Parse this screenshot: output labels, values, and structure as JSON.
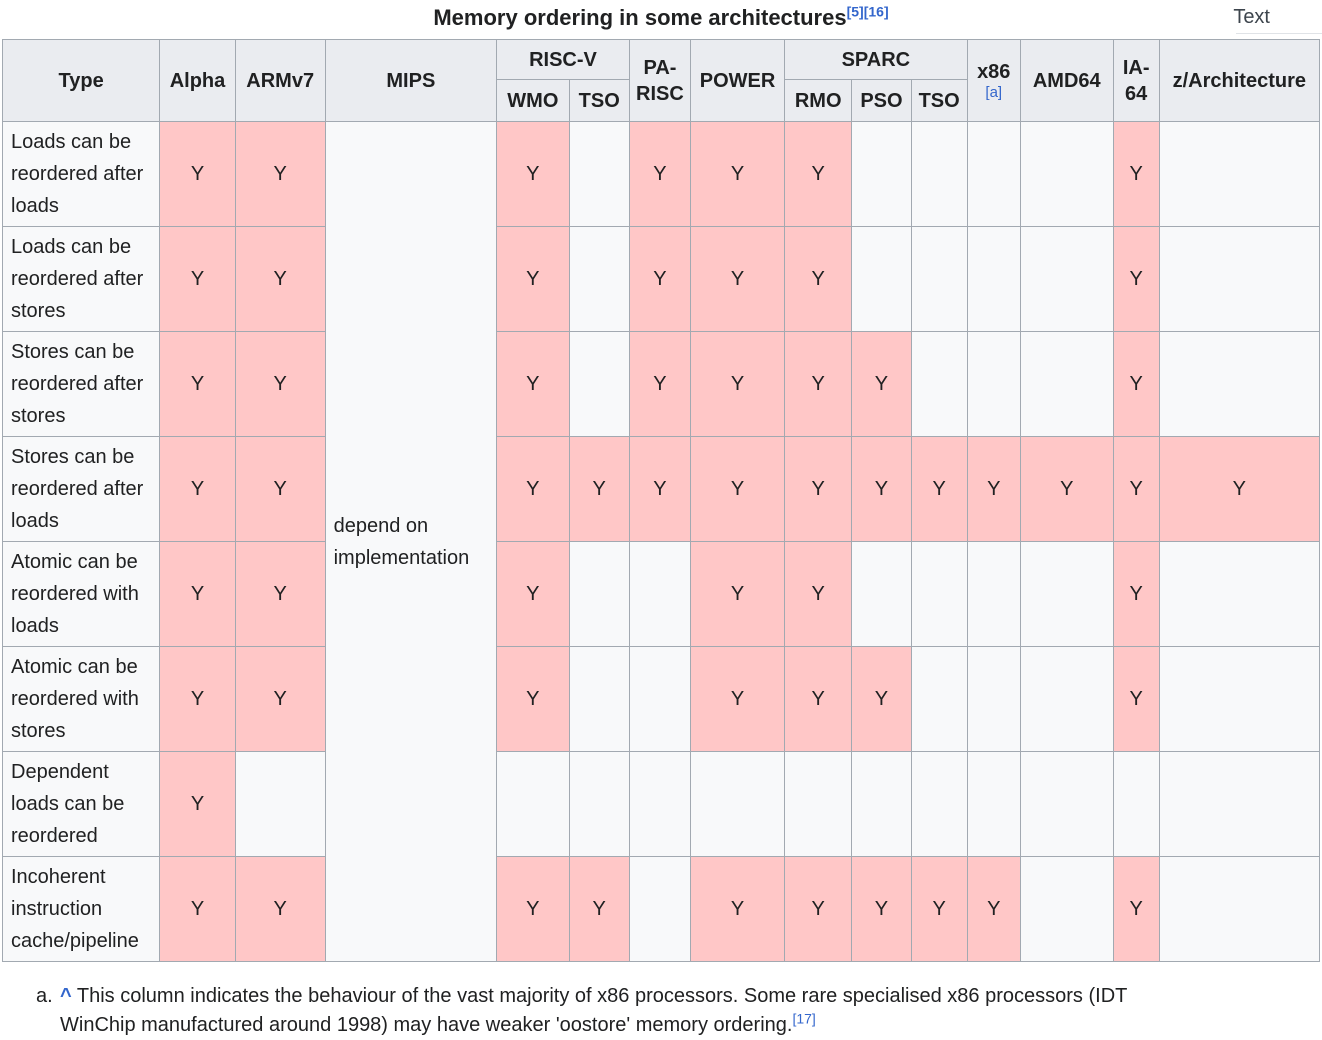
{
  "page": {
    "title": "Memory ordering in some architectures",
    "title_refs": [
      "[5]",
      "[16]"
    ],
    "corner_label": "Text"
  },
  "table": {
    "header": {
      "type": "Type",
      "alpha": "Alpha",
      "armv7": "ARMv7",
      "mips": "MIPS",
      "riscv": "RISC-V",
      "riscv_wmo": "WMO",
      "riscv_tso": "TSO",
      "parisc": "PA-RISC",
      "power": "POWER",
      "sparc": "SPARC",
      "sparc_rmo": "RMO",
      "sparc_pso": "PSO",
      "sparc_tso": "TSO",
      "x86": "x86",
      "x86_note": "[a]",
      "amd64": "AMD64",
      "ia64": "IA-64",
      "zarch": "z/Architecture"
    },
    "column_keys": [
      "alpha",
      "armv7",
      "riscv-wmo",
      "riscv-tso",
      "pa-risc",
      "power",
      "sparc-rmo",
      "sparc-pso",
      "sparc-tso",
      "x86",
      "amd64",
      "ia-64",
      "z-architecture"
    ],
    "mips_note": "depend on implementation",
    "yes_mark": "Y",
    "rows": [
      {
        "type": "Loads can be reordered after loads",
        "cells": [
          "Y",
          "Y",
          "Y",
          "",
          "Y",
          "Y",
          "Y",
          "",
          "",
          "",
          "",
          "Y",
          ""
        ]
      },
      {
        "type": "Loads can be reordered after stores",
        "cells": [
          "Y",
          "Y",
          "Y",
          "",
          "Y",
          "Y",
          "Y",
          "",
          "",
          "",
          "",
          "Y",
          ""
        ]
      },
      {
        "type": "Stores can be reordered after stores",
        "cells": [
          "Y",
          "Y",
          "Y",
          "",
          "Y",
          "Y",
          "Y",
          "Y",
          "",
          "",
          "",
          "Y",
          ""
        ]
      },
      {
        "type": "Stores can be reordered after loads",
        "cells": [
          "Y",
          "Y",
          "Y",
          "Y",
          "Y",
          "Y",
          "Y",
          "Y",
          "Y",
          "Y",
          "Y",
          "Y",
          "Y"
        ]
      },
      {
        "type": "Atomic can be reordered with loads",
        "cells": [
          "Y",
          "Y",
          "Y",
          "",
          "",
          "Y",
          "Y",
          "",
          "",
          "",
          "",
          "Y",
          ""
        ]
      },
      {
        "type": "Atomic can be reordered with stores",
        "cells": [
          "Y",
          "Y",
          "Y",
          "",
          "",
          "Y",
          "Y",
          "Y",
          "",
          "",
          "",
          "Y",
          ""
        ]
      },
      {
        "type": "Dependent loads can be reordered",
        "cells": [
          "Y",
          "",
          "",
          "",
          "",
          "",
          "",
          "",
          "",
          "",
          "",
          "",
          ""
        ]
      },
      {
        "type": "Incoherent instruction cache/pipeline",
        "cells": [
          "Y",
          "Y",
          "Y",
          "Y",
          "",
          "Y",
          "Y",
          "Y",
          "Y",
          "Y",
          "",
          "Y",
          ""
        ]
      }
    ]
  },
  "footnote": {
    "marker": "a.",
    "backlink": "^",
    "text": "This column indicates the behaviour of the vast majority of x86 processors. Some rare specialised x86 processors (IDT WinChip manufactured around 1998) may have weaker 'oostore' memory ordering.",
    "ref": "[17]"
  },
  "colors": {
    "yes_cell_bg": "#ffc7c7",
    "header_bg": "#eaecf0",
    "cell_bg": "#f8f9fa",
    "border": "#a2a9b1",
    "link": "#3366cc",
    "text": "#202122"
  }
}
